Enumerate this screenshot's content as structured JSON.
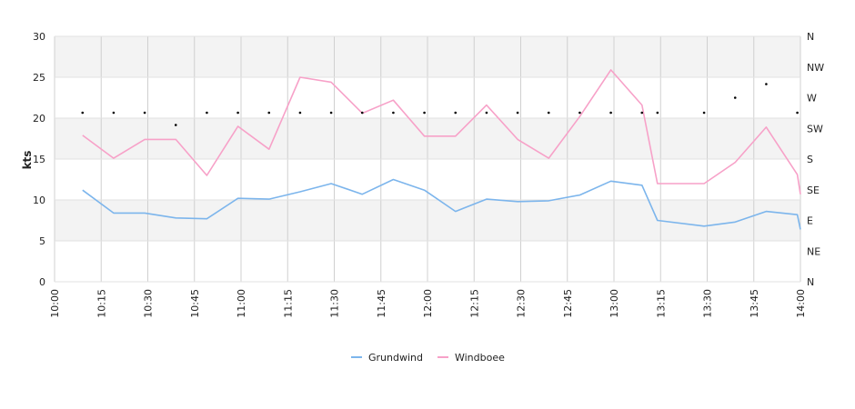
{
  "chart_data": {
    "type": "line",
    "ylabel": "kts",
    "ylim": [
      0,
      30
    ],
    "yticks": [
      0,
      5,
      10,
      15,
      20,
      25,
      30
    ],
    "xlim": [
      "10:00",
      "14:00"
    ],
    "xticks": [
      "10:00",
      "10:15",
      "10:30",
      "10:45",
      "11:00",
      "11:15",
      "11:30",
      "11:45",
      "12:00",
      "12:15",
      "12:30",
      "12:45",
      "13:00",
      "13:15",
      "13:30",
      "13:45",
      "14:00"
    ],
    "direction_ticks": [
      "N",
      "NW",
      "W",
      "SW",
      "S",
      "SE",
      "E",
      "NE",
      "N"
    ],
    "grid": true,
    "legend": "bottom-center",
    "series": [
      {
        "name": "Grundwind",
        "color": "#7cb5ec",
        "x": [
          "10:09",
          "10:19",
          "10:29",
          "10:39",
          "10:49",
          "10:59",
          "11:09",
          "11:19",
          "11:29",
          "11:39",
          "11:49",
          "11:59",
          "12:09",
          "12:19",
          "12:29",
          "12:39",
          "12:49",
          "12:59",
          "13:09",
          "13:14",
          "13:29",
          "13:39",
          "13:49",
          "13:59",
          "14:00"
        ],
        "values": [
          11.2,
          8.4,
          8.4,
          7.8,
          7.7,
          10.2,
          10.1,
          11.0,
          12.0,
          10.7,
          12.5,
          11.2,
          8.6,
          10.1,
          9.8,
          9.9,
          10.6,
          12.3,
          11.8,
          7.5,
          6.8,
          7.3,
          8.6,
          8.2,
          6.4
        ]
      },
      {
        "name": "Windboee",
        "color": "#f7a1c8",
        "x": [
          "10:09",
          "10:19",
          "10:29",
          "10:39",
          "10:49",
          "10:59",
          "11:09",
          "11:19",
          "11:29",
          "11:39",
          "11:49",
          "11:59",
          "12:09",
          "12:19",
          "12:29",
          "12:39",
          "12:49",
          "12:59",
          "13:09",
          "13:14",
          "13:29",
          "13:39",
          "13:49",
          "13:59",
          "14:00"
        ],
        "values": [
          17.9,
          15.1,
          17.4,
          17.4,
          13.0,
          19.0,
          16.2,
          25.0,
          24.4,
          20.6,
          22.2,
          17.8,
          17.8,
          21.6,
          17.4,
          15.1,
          20.2,
          25.9,
          21.6,
          12.0,
          12.0,
          14.6,
          18.9,
          13.1,
          10.7
        ]
      },
      {
        "name": "",
        "kind": "direction",
        "color": "#000000",
        "x": [
          "10:09",
          "10:19",
          "10:29",
          "10:39",
          "10:49",
          "10:59",
          "11:09",
          "11:19",
          "11:29",
          "11:39",
          "11:49",
          "11:59",
          "12:09",
          "12:19",
          "12:29",
          "12:39",
          "12:49",
          "12:59",
          "13:09",
          "13:14",
          "13:29",
          "13:39",
          "13:49",
          "13:59"
        ],
        "values_deg": [
          248,
          248,
          248,
          230,
          248,
          248,
          248,
          248,
          248,
          248,
          248,
          248,
          248,
          248,
          248,
          248,
          248,
          248,
          248,
          248,
          248,
          270,
          290,
          248
        ]
      }
    ]
  }
}
